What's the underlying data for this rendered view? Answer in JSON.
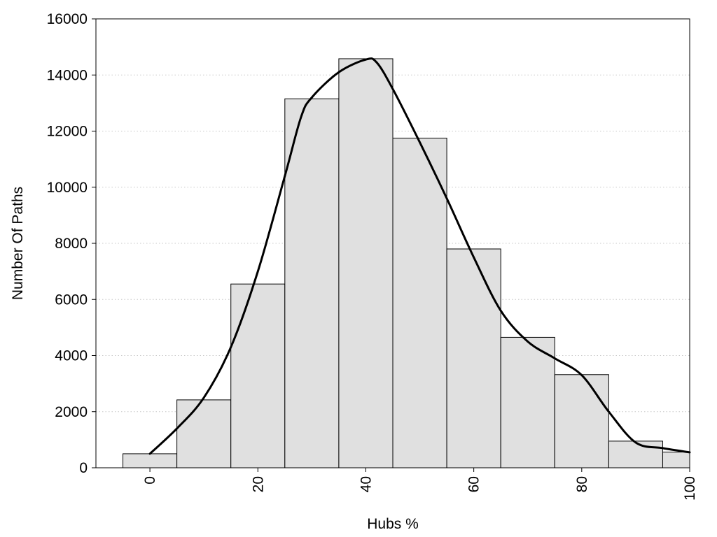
{
  "chart_data": {
    "type": "bar",
    "title": "",
    "xlabel": "Hubs %",
    "ylabel": "Number Of Paths",
    "xlim": [
      -10,
      100
    ],
    "ylim": [
      0,
      16000
    ],
    "x_ticks": [
      "0",
      "20",
      "40",
      "60",
      "80",
      "100"
    ],
    "x_tick_values": [
      0,
      20,
      40,
      60,
      80,
      100
    ],
    "y_ticks": [
      "0",
      "2000",
      "4000",
      "6000",
      "8000",
      "10000",
      "12000",
      "14000",
      "16000"
    ],
    "y_tick_values": [
      0,
      2000,
      4000,
      6000,
      8000,
      10000,
      12000,
      14000,
      16000
    ],
    "grid": "horizontal dotted",
    "bar_color": "#e0e0e0",
    "bar_edge_color": "#000000",
    "line_color": "#000000",
    "bins": [
      {
        "start": -5,
        "end": 5,
        "value": 500
      },
      {
        "start": 5,
        "end": 15,
        "value": 2420
      },
      {
        "start": 15,
        "end": 25,
        "value": 6550
      },
      {
        "start": 25,
        "end": 35,
        "value": 13150
      },
      {
        "start": 35,
        "end": 45,
        "value": 14580
      },
      {
        "start": 45,
        "end": 55,
        "value": 11750
      },
      {
        "start": 55,
        "end": 65,
        "value": 7800
      },
      {
        "start": 65,
        "end": 75,
        "value": 4650
      },
      {
        "start": 75,
        "end": 85,
        "value": 3320
      },
      {
        "start": 85,
        "end": 95,
        "value": 950
      },
      {
        "start": 95,
        "end": 100,
        "value": 560
      }
    ],
    "density_curve": {
      "x": [
        0,
        5,
        10,
        15,
        20,
        25,
        28,
        30,
        35,
        40,
        42,
        45,
        50,
        55,
        60,
        65,
        70,
        75,
        80,
        85,
        90,
        95,
        100
      ],
      "y": [
        500,
        1400,
        2500,
        4300,
        7000,
        10400,
        12500,
        13200,
        14100,
        14550,
        14450,
        13500,
        11600,
        9600,
        7500,
        5600,
        4500,
        3900,
        3300,
        2000,
        900,
        700,
        550
      ]
    }
  }
}
